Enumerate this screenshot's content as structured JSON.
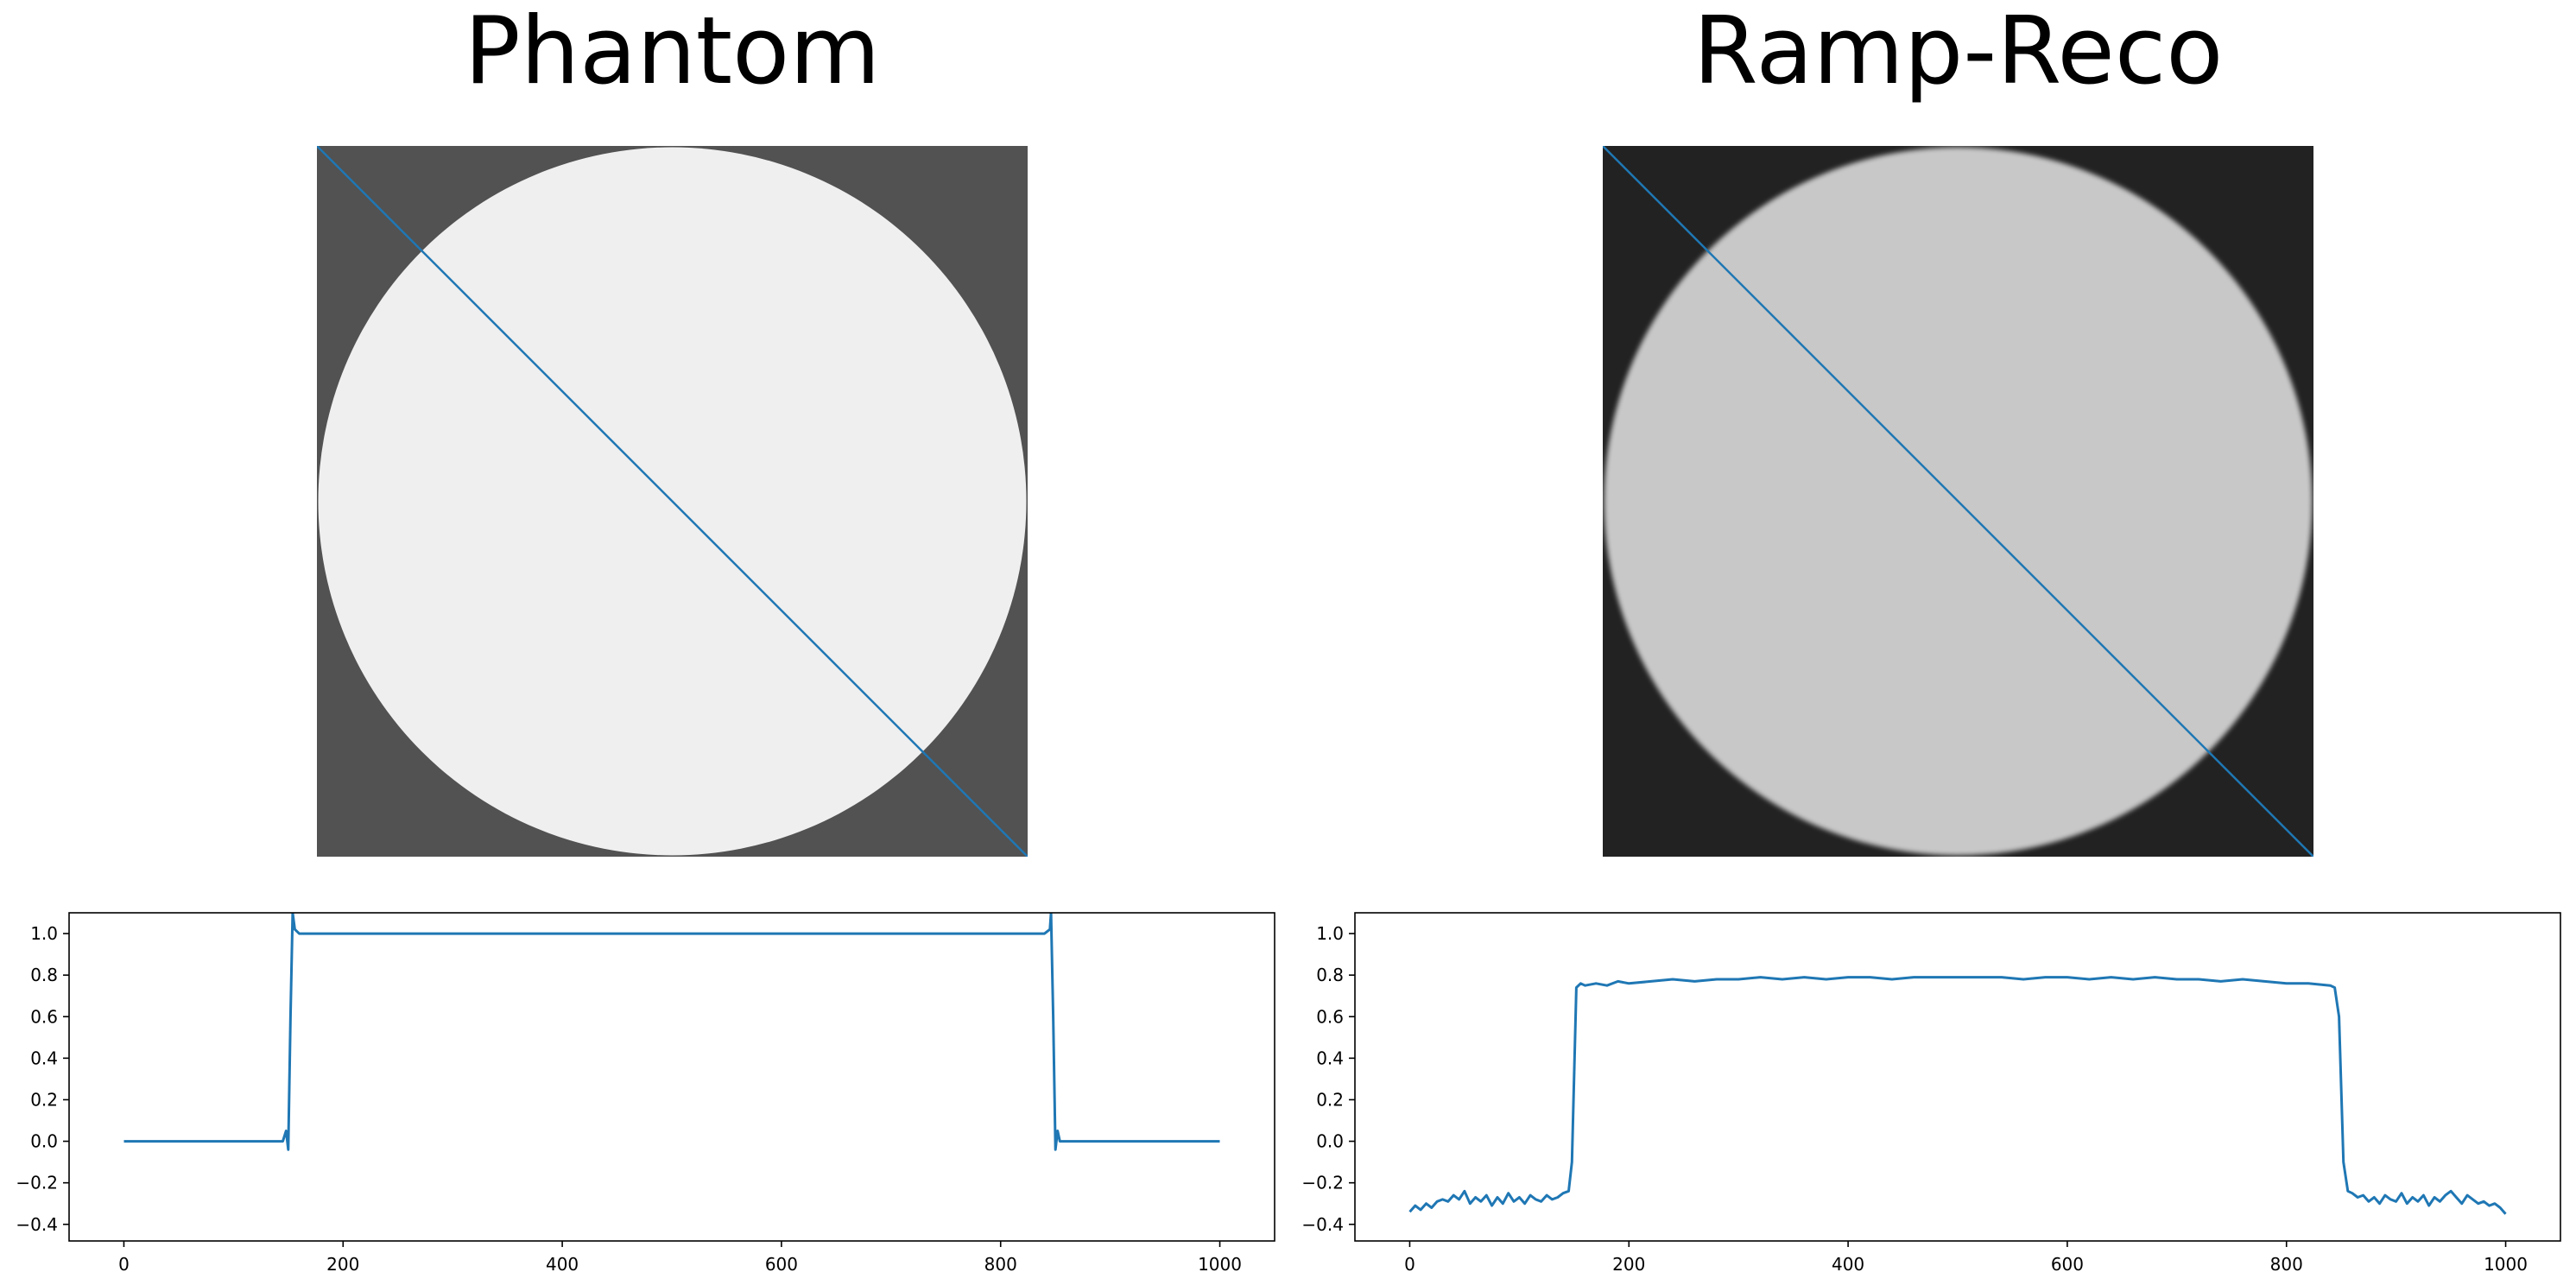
{
  "colors": {
    "line": "#1f77b4",
    "phantom_background": "#525252",
    "phantom_disk": "#efefef",
    "reco_background": "#222222",
    "reco_disk": "#c8c8c8"
  },
  "images": [
    {
      "title": "Phantom",
      "overlay_line": "diagonal"
    },
    {
      "title": "Ramp-Reco",
      "overlay_line": "diagonal"
    }
  ],
  "chart_data": [
    {
      "type": "line",
      "series": [
        {
          "x": [
            0,
            145,
            148,
            150,
            152,
            154,
            156,
            160,
            170,
            200,
            500,
            800,
            840,
            845,
            846,
            848,
            850,
            852,
            854,
            856,
            860,
            900,
            1000
          ],
          "y": [
            0.0,
            0.0,
            0.05,
            -0.04,
            0.6,
            1.1,
            1.02,
            1.0,
            1.0,
            1.0,
            1.0,
            1.0,
            1.0,
            1.02,
            1.1,
            0.6,
            -0.04,
            0.05,
            0.0,
            0.0,
            0.0,
            0.0,
            0.0
          ]
        }
      ],
      "xlim": [
        -50,
        1050
      ],
      "ylim": [
        -0.48,
        1.1
      ],
      "xticks": [
        0,
        200,
        400,
        600,
        800,
        1000
      ],
      "yticks": [
        -0.4,
        -0.2,
        0.0,
        0.2,
        0.4,
        0.6,
        0.8,
        1.0
      ],
      "ytick_labels": [
        "−0.4",
        "−0.2",
        "0.0",
        "0.2",
        "0.4",
        "0.6",
        "0.8",
        "1.0"
      ],
      "xtick_labels": [
        "0",
        "200",
        "400",
        "600",
        "800",
        "1000"
      ],
      "grid": false
    },
    {
      "type": "line",
      "series": [
        {
          "x": [
            0,
            5,
            10,
            15,
            20,
            25,
            30,
            35,
            40,
            45,
            50,
            55,
            60,
            65,
            70,
            75,
            80,
            85,
            90,
            95,
            100,
            105,
            110,
            115,
            120,
            125,
            130,
            135,
            140,
            145,
            148,
            152,
            156,
            160,
            170,
            180,
            190,
            200,
            220,
            240,
            260,
            280,
            300,
            320,
            340,
            360,
            380,
            400,
            420,
            440,
            460,
            480,
            500,
            520,
            540,
            560,
            580,
            600,
            620,
            640,
            660,
            680,
            700,
            720,
            740,
            760,
            780,
            800,
            820,
            840,
            844,
            848,
            852,
            856,
            860,
            865,
            870,
            875,
            880,
            885,
            890,
            895,
            900,
            905,
            910,
            915,
            920,
            925,
            930,
            935,
            940,
            945,
            950,
            955,
            960,
            965,
            970,
            975,
            980,
            985,
            990,
            995,
            1000
          ],
          "y": [
            -0.34,
            -0.31,
            -0.33,
            -0.3,
            -0.32,
            -0.29,
            -0.28,
            -0.29,
            -0.26,
            -0.28,
            -0.24,
            -0.3,
            -0.27,
            -0.29,
            -0.26,
            -0.31,
            -0.27,
            -0.3,
            -0.25,
            -0.29,
            -0.27,
            -0.3,
            -0.26,
            -0.28,
            -0.29,
            -0.26,
            -0.28,
            -0.27,
            -0.25,
            -0.24,
            -0.1,
            0.74,
            0.76,
            0.75,
            0.76,
            0.75,
            0.77,
            0.76,
            0.77,
            0.78,
            0.77,
            0.78,
            0.78,
            0.79,
            0.78,
            0.79,
            0.78,
            0.79,
            0.79,
            0.78,
            0.79,
            0.79,
            0.79,
            0.79,
            0.79,
            0.78,
            0.79,
            0.79,
            0.78,
            0.79,
            0.78,
            0.79,
            0.78,
            0.78,
            0.77,
            0.78,
            0.77,
            0.76,
            0.76,
            0.75,
            0.74,
            0.6,
            -0.1,
            -0.24,
            -0.25,
            -0.27,
            -0.26,
            -0.29,
            -0.27,
            -0.3,
            -0.26,
            -0.28,
            -0.29,
            -0.25,
            -0.3,
            -0.27,
            -0.29,
            -0.26,
            -0.31,
            -0.27,
            -0.29,
            -0.26,
            -0.24,
            -0.27,
            -0.3,
            -0.26,
            -0.28,
            -0.3,
            -0.29,
            -0.31,
            -0.3,
            -0.32,
            -0.35
          ]
        }
      ],
      "xlim": [
        -50,
        1050
      ],
      "ylim": [
        -0.48,
        1.1
      ],
      "xticks": [
        0,
        200,
        400,
        600,
        800,
        1000
      ],
      "yticks": [
        -0.4,
        -0.2,
        0.0,
        0.2,
        0.4,
        0.6,
        0.8,
        1.0
      ],
      "ytick_labels": [
        "−0.4",
        "−0.2",
        "0.0",
        "0.2",
        "0.4",
        "0.6",
        "0.8",
        "1.0"
      ],
      "xtick_labels": [
        "0",
        "200",
        "400",
        "600",
        "800",
        "1000"
      ],
      "grid": false
    }
  ]
}
